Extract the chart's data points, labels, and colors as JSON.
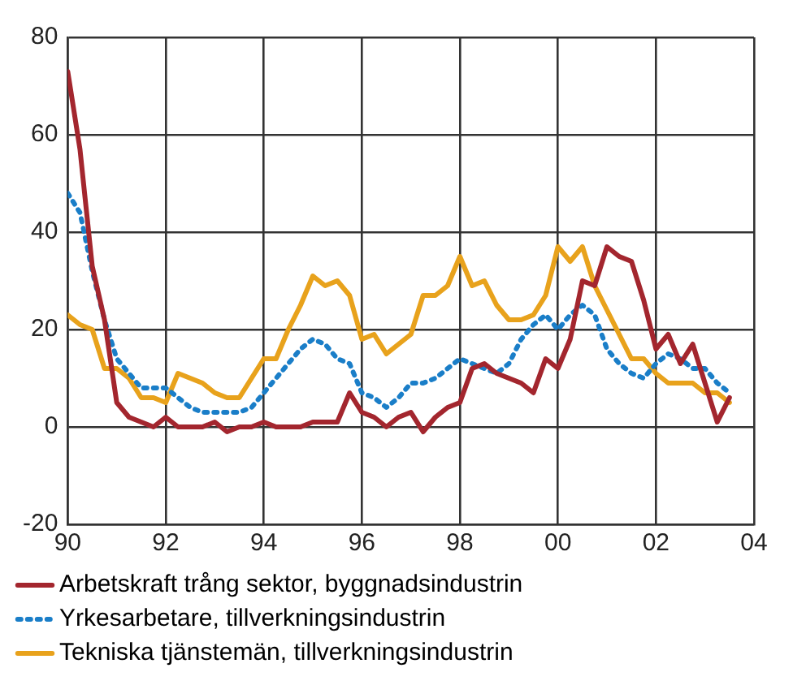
{
  "chart_data": {
    "type": "line",
    "x": [
      1990,
      1990.25,
      1990.5,
      1990.75,
      1991,
      1991.25,
      1991.5,
      1991.75,
      1992,
      1992.25,
      1992.5,
      1992.75,
      1993,
      1993.25,
      1993.5,
      1993.75,
      1994,
      1994.25,
      1994.5,
      1994.75,
      1995,
      1995.25,
      1995.5,
      1995.75,
      1996,
      1996.25,
      1996.5,
      1996.75,
      1997,
      1997.25,
      1997.5,
      1997.75,
      1998,
      1998.25,
      1998.5,
      1998.75,
      1999,
      1999.25,
      1999.5,
      1999.75,
      2000,
      2000.25,
      2000.5,
      2000.75,
      2001,
      2001.25,
      2001.5,
      2001.75,
      2002,
      2002.25,
      2002.5,
      2002.75,
      2003,
      2003.25,
      2003.5
    ],
    "series": [
      {
        "name": "Arbetskraft trång sektor, byggnadsindustrin",
        "color": "#a3262e",
        "line_style": "solid",
        "values": [
          73,
          57,
          33,
          22,
          5,
          2,
          1,
          0,
          2,
          0,
          0,
          0,
          1,
          -1,
          0,
          0,
          1,
          0,
          0,
          0,
          1,
          1,
          1,
          7,
          3,
          2,
          0,
          2,
          3,
          -1,
          2,
          4,
          5,
          12,
          13,
          11,
          10,
          9,
          7,
          14,
          12,
          18,
          30,
          29,
          37,
          35,
          34,
          26,
          16,
          19,
          13,
          17,
          9,
          1,
          6
        ]
      },
      {
        "name": "Yrkesarbetare, tillverkningsindustrin",
        "color": "#1a7ec8",
        "line_style": "dotted",
        "values": [
          48,
          44,
          32,
          22,
          14,
          11,
          8,
          8,
          8,
          6,
          4,
          3,
          3,
          3,
          3,
          4,
          7,
          10,
          13,
          16,
          18,
          17,
          14,
          13,
          7,
          6,
          4,
          6,
          9,
          9,
          10,
          12,
          14,
          13,
          12,
          11,
          13,
          18,
          21,
          23,
          20,
          23,
          25,
          23,
          16,
          13,
          11,
          10,
          13,
          15,
          14,
          12,
          12,
          9,
          7
        ]
      },
      {
        "name": "Tekniska tjänstemän, tillverkningsindustrin",
        "color": "#e8a21c",
        "line_style": "solid",
        "values": [
          23,
          21,
          20,
          12,
          12,
          10,
          6,
          6,
          5,
          11,
          10,
          9,
          7,
          6,
          6,
          10,
          14,
          14,
          20,
          25,
          31,
          29,
          30,
          27,
          18,
          19,
          15,
          17,
          19,
          27,
          27,
          29,
          35,
          29,
          30,
          25,
          22,
          22,
          23,
          27,
          37,
          34,
          37,
          29,
          24,
          19,
          14,
          14,
          11,
          9,
          9,
          9,
          7,
          7,
          5
        ]
      }
    ],
    "xlim": [
      1990,
      2004
    ],
    "xticks": [
      {
        "value": 1990,
        "label": "90"
      },
      {
        "value": 1992,
        "label": "92"
      },
      {
        "value": 1994,
        "label": "94"
      },
      {
        "value": 1996,
        "label": "96"
      },
      {
        "value": 1998,
        "label": "98"
      },
      {
        "value": 2000,
        "label": "00"
      },
      {
        "value": 2002,
        "label": "02"
      },
      {
        "value": 2004,
        "label": "04"
      }
    ],
    "ylim": [
      -20,
      80
    ],
    "yticks": [
      -20,
      0,
      20,
      40,
      60,
      80
    ],
    "grid": true,
    "legend": "bottom"
  }
}
